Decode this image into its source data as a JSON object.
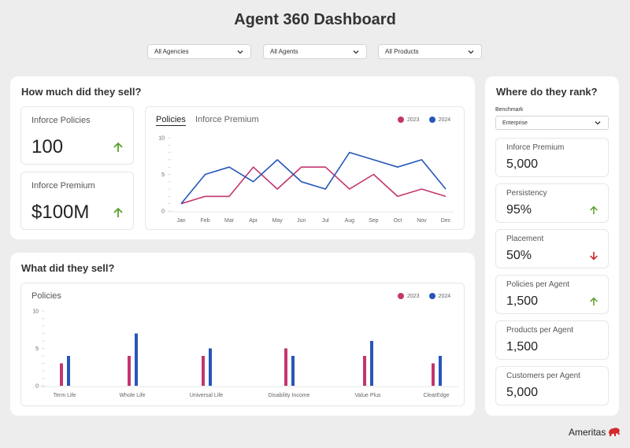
{
  "title": "Agent 360 Dashboard",
  "filters": [
    {
      "label": "All Agencies"
    },
    {
      "label": "All Agents"
    },
    {
      "label": "All Products"
    }
  ],
  "colors": {
    "series_2023": "#c2366e",
    "series_2024": "#2657b8",
    "up": "#5aa02c",
    "down": "#c81e1e"
  },
  "sell": {
    "title": "How much did they sell?",
    "kpis": [
      {
        "label": "Inforce Policies",
        "value": "100",
        "trend": "up"
      },
      {
        "label": "Inforce Premium",
        "value": "$100M",
        "trend": "up"
      }
    ],
    "tabs": [
      "Policies",
      "Inforce Premium"
    ],
    "active_tab": "Policies"
  },
  "what": {
    "title": "What did they sell?",
    "chart_label": "Policies"
  },
  "rank": {
    "title": "Where do they rank?",
    "benchmark_label": "Benchmark",
    "benchmark_value": "Enterprise",
    "items": [
      {
        "label": "Inforce Premium",
        "value": "5,000",
        "trend": "none"
      },
      {
        "label": "Persistency",
        "value": "95%",
        "trend": "up"
      },
      {
        "label": "Placement",
        "value": "50%",
        "trend": "down"
      },
      {
        "label": "Policies per Agent",
        "value": "1,500",
        "trend": "up"
      },
      {
        "label": "Products per Agent",
        "value": "1,500",
        "trend": "none"
      },
      {
        "label": "Customers per Agent",
        "value": "5,000",
        "trend": "none"
      }
    ]
  },
  "brand": {
    "name": "Ameritas"
  },
  "chart_data": [
    {
      "type": "line",
      "title": "Policies",
      "categories": [
        "Jan",
        "Feb",
        "Mar",
        "Apr",
        "May",
        "Jun",
        "Jul",
        "Aug",
        "Sep",
        "Oct",
        "Nov",
        "Dec"
      ],
      "series": [
        {
          "name": "2023",
          "values": [
            1,
            2,
            2,
            6,
            3,
            6,
            6,
            3,
            5,
            2,
            3,
            2
          ]
        },
        {
          "name": "2024",
          "values": [
            1,
            5,
            6,
            4,
            7,
            4,
            3,
            8,
            7,
            6,
            7,
            3
          ]
        }
      ],
      "yticks": [
        0,
        5,
        10
      ],
      "ylim": [
        0,
        10
      ],
      "legend": "top-right",
      "grid": false
    },
    {
      "type": "bar",
      "title": "Policies",
      "categories": [
        "Term Life",
        "Whole Life",
        "Universal Life",
        "Disability Income",
        "Value Plus",
        "ClearEdge"
      ],
      "series": [
        {
          "name": "2023",
          "values": [
            3,
            4,
            4,
            5,
            4,
            3
          ]
        },
        {
          "name": "2024",
          "values": [
            4,
            7,
            5,
            4,
            6,
            4
          ]
        }
      ],
      "yticks": [
        0,
        5,
        10
      ],
      "ylim": [
        0,
        10
      ],
      "legend": "top-right",
      "grid": false
    }
  ]
}
